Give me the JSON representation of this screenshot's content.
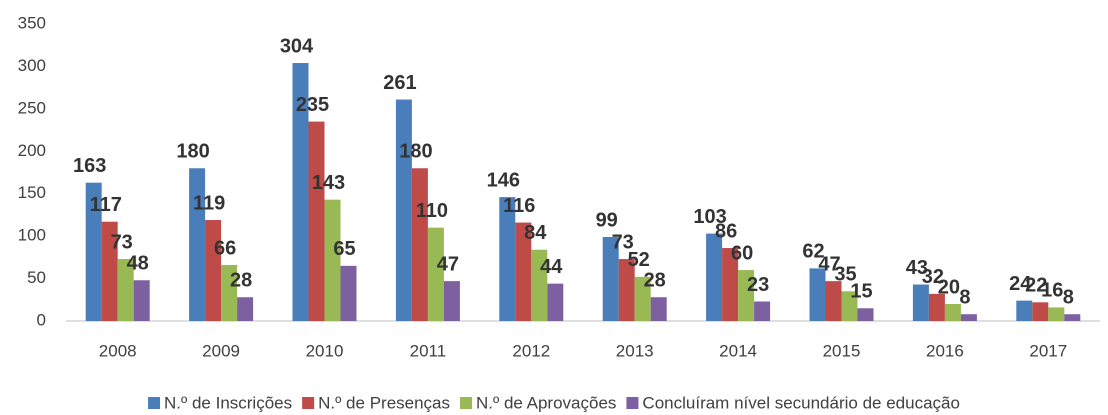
{
  "chart_data": {
    "type": "bar",
    "categories": [
      "2008",
      "2009",
      "2010",
      "2011",
      "2012",
      "2013",
      "2014",
      "2015",
      "2016",
      "2017"
    ],
    "series": [
      {
        "name": "N.º de Inscrições",
        "color": "#4a7ebb",
        "values": [
          163,
          180,
          304,
          261,
          146,
          99,
          103,
          62,
          43,
          24
        ]
      },
      {
        "name": "N.º de Presenças",
        "color": "#be4b48",
        "values": [
          117,
          119,
          235,
          180,
          116,
          73,
          86,
          47,
          32,
          22
        ]
      },
      {
        "name": "N.º de Aprovações",
        "color": "#98b954",
        "values": [
          73,
          66,
          143,
          110,
          84,
          52,
          60,
          35,
          20,
          16
        ]
      },
      {
        "name": "Concluíram nível secundário de educação",
        "color": "#7d60a0",
        "values": [
          48,
          28,
          65,
          47,
          44,
          28,
          23,
          15,
          8,
          8
        ]
      }
    ],
    "ylim": [
      0,
      350
    ],
    "yticks": [
      0,
      50,
      100,
      150,
      200,
      250,
      300,
      350
    ],
    "grid": false,
    "legend": "bottom"
  }
}
